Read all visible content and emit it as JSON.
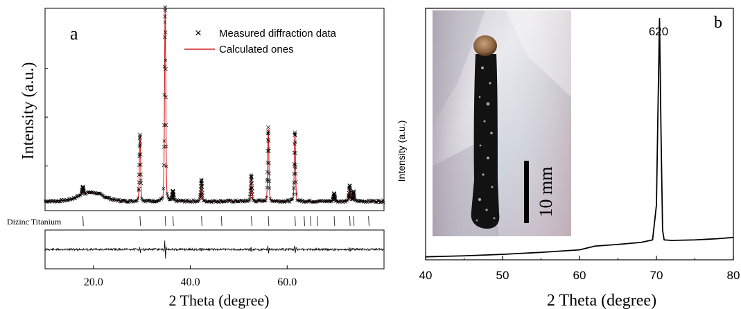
{
  "chart_data": [
    {
      "panel": "a",
      "type": "line",
      "panel_label": "a",
      "xlabel": "2 Theta (degree)",
      "ylabel": "Intensity (a.u.)",
      "xlim": [
        10,
        80
      ],
      "x_ticks": [
        "20.0",
        "40.0",
        "60.0"
      ],
      "legend_position": "top-right",
      "series": [
        {
          "name": "Measured diffraction data",
          "marker": "x",
          "color": "#000000"
        },
        {
          "name": "Calculated ones",
          "marker": "line",
          "color": "#d42020"
        }
      ],
      "background_hump": {
        "center": 19.5,
        "width": 3.5,
        "height": 0.045
      },
      "baseline": 0.02,
      "peaks": [
        {
          "x": 17.8,
          "rel_intensity": 0.04
        },
        {
          "x": 29.6,
          "rel_intensity": 0.34
        },
        {
          "x": 34.8,
          "rel_intensity": 1.0
        },
        {
          "x": 36.4,
          "rel_intensity": 0.05
        },
        {
          "x": 42.3,
          "rel_intensity": 0.11
        },
        {
          "x": 52.6,
          "rel_intensity": 0.13
        },
        {
          "x": 56.1,
          "rel_intensity": 0.37
        },
        {
          "x": 61.6,
          "rel_intensity": 0.35
        },
        {
          "x": 69.7,
          "rel_intensity": 0.04
        },
        {
          "x": 72.9,
          "rel_intensity": 0.08
        },
        {
          "x": 73.7,
          "rel_intensity": 0.05
        }
      ],
      "phase_label": "Dizinc Titanium",
      "bragg_positions": [
        17.8,
        29.6,
        34.8,
        36.4,
        42.3,
        46.4,
        52.6,
        56.1,
        61.6,
        63.5,
        64.8,
        66.2,
        69.7,
        72.9,
        73.7,
        76.8
      ],
      "difference_spikes": [
        {
          "x": 29.6,
          "amp": 0.3
        },
        {
          "x": 34.8,
          "amp": 1.0
        },
        {
          "x": 42.3,
          "amp": 0.2
        },
        {
          "x": 52.6,
          "amp": 0.25
        },
        {
          "x": 56.1,
          "amp": 0.45
        },
        {
          "x": 61.6,
          "amp": 0.4
        },
        {
          "x": 72.9,
          "amp": 0.2
        }
      ]
    },
    {
      "panel": "b",
      "type": "line",
      "panel_label": "b",
      "xlabel": "2 Theta (degree)",
      "ylabel": "Intensity (a.u.)",
      "xlim": [
        40,
        80
      ],
      "x_ticks": [
        "40",
        "50",
        "60",
        "70",
        "80"
      ],
      "annotations": [
        {
          "text": "620",
          "x": 70.4
        }
      ],
      "series": [
        {
          "color": "#000000",
          "points": [
            [
              40,
              0.012
            ],
            [
              45,
              0.016
            ],
            [
              50,
              0.022
            ],
            [
              55,
              0.03
            ],
            [
              60,
              0.04
            ],
            [
              62,
              0.055
            ],
            [
              65,
              0.062
            ],
            [
              68,
              0.07
            ],
            [
              69.5,
              0.08
            ],
            [
              70.0,
              0.22
            ],
            [
              70.2,
              0.6
            ],
            [
              70.4,
              0.97
            ],
            [
              70.6,
              0.5
            ],
            [
              70.8,
              0.12
            ],
            [
              71.0,
              0.08
            ],
            [
              72,
              0.078
            ],
            [
              75,
              0.08
            ],
            [
              78,
              0.085
            ],
            [
              80,
              0.09
            ]
          ]
        }
      ],
      "inset": {
        "description": "photo",
        "scale_bar_label": "10 mm"
      }
    }
  ]
}
